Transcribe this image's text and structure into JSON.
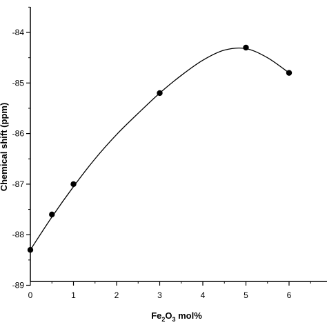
{
  "chart_data": {
    "type": "scatter",
    "xlabel": "Fe2O3 mol%",
    "xlabel_parts": {
      "base1": "Fe",
      "sub1": "2",
      "base2": "O",
      "sub2": "3",
      "rest": " mol%"
    },
    "ylabel": "Chemical shift (ppm)",
    "xlim": [
      0,
      6.9
    ],
    "ylim": [
      -89,
      -83.5
    ],
    "x_ticks": [
      0,
      1,
      2,
      3,
      4,
      5,
      6
    ],
    "y_ticks": [
      -84,
      -85,
      -86,
      -87,
      -88,
      -89
    ],
    "series": [
      {
        "x": [
          0,
          0.5,
          1,
          3,
          5,
          6
        ],
        "y": [
          -88.3,
          -87.6,
          -87.0,
          -85.2,
          -84.3,
          -84.8
        ]
      }
    ],
    "fit_curve": {
      "x": [
        0,
        0.5,
        1,
        1.5,
        2,
        2.5,
        3,
        3.5,
        4,
        4.5,
        5,
        5.5,
        6
      ],
      "y": [
        -88.3,
        -87.65,
        -87.05,
        -86.5,
        -86.02,
        -85.6,
        -85.2,
        -84.85,
        -84.55,
        -84.35,
        -84.32,
        -84.5,
        -84.8
      ]
    },
    "grid": false,
    "legend": "none",
    "colors": {
      "marker": "#000000",
      "line": "#000000",
      "axis": "#000000"
    }
  }
}
